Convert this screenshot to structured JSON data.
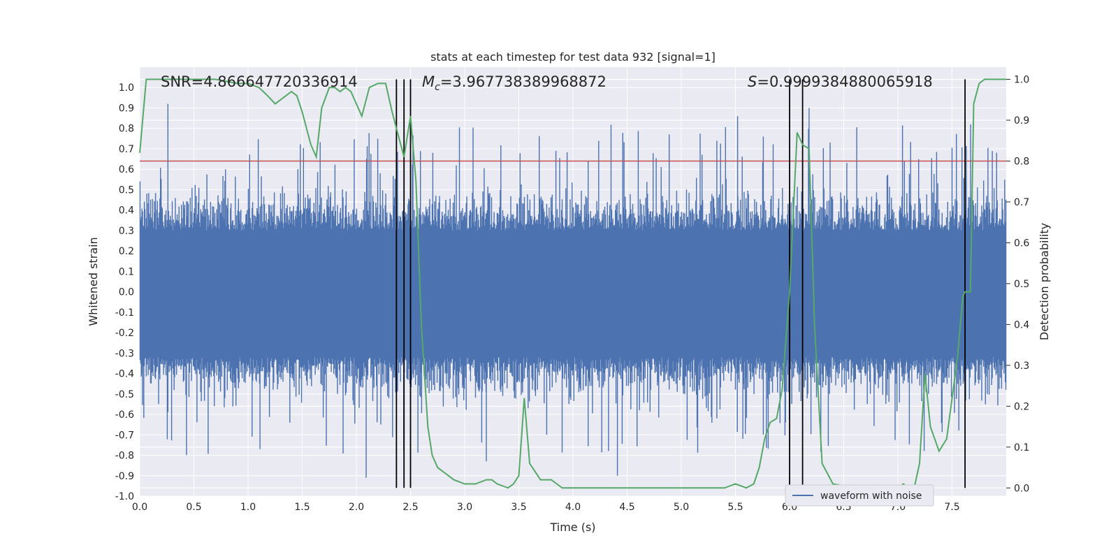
{
  "chart_data": {
    "type": "line",
    "title": "stats at each timestep for test data 932 [signal=1]",
    "xlabel": "Time (s)",
    "ylabel_left": "Whitened strain",
    "ylabel_right": "Detection probability",
    "xlim": [
      0.0,
      8.0
    ],
    "ylim_left": [
      -1.0,
      1.1
    ],
    "ylim_right": [
      -0.02,
      1.03
    ],
    "x_ticks": [
      "0.0",
      "0.5",
      "1.0",
      "1.5",
      "2.0",
      "2.5",
      "3.0",
      "3.5",
      "4.0",
      "4.5",
      "5.0",
      "5.5",
      "6.0",
      "6.5",
      "7.0",
      "7.5"
    ],
    "y_ticks_left": [
      "-1.0",
      "-0.9",
      "-0.8",
      "-0.7",
      "-0.6",
      "-0.5",
      "-0.4",
      "-0.3",
      "-0.2",
      "-0.1",
      "0.0",
      "0.1",
      "0.2",
      "0.3",
      "0.4",
      "0.5",
      "0.6",
      "0.7",
      "0.8",
      "0.9",
      "1.0"
    ],
    "y_ticks_right": [
      "0.0",
      "0.1",
      "0.2",
      "0.3",
      "0.4",
      "0.5",
      "0.6",
      "0.7",
      "0.8",
      "0.9",
      "1.0"
    ],
    "annotations": {
      "snr": "SNR=4.866647720336914",
      "mc_symbol": "M",
      "mc_sub": "c",
      "mc_value": "=3.967738389968872",
      "s_symbol": "S",
      "s_value": "=0.9999384880065918"
    },
    "threshold_probability": 0.8,
    "event_times": [
      2.37,
      2.44,
      2.5,
      6.0,
      6.12,
      7.62
    ],
    "series": [
      {
        "name": "waveform with noise",
        "color": "#4c72b0",
        "description": "Whitened strain noise over 0-8 s, amplitude mostly within +/-0.45 with spikes to about +0.92 / -0.9"
      },
      {
        "name": "detection probability",
        "color": "#55a868",
        "x": [
          0.0,
          0.06,
          0.15,
          0.3,
          0.5,
          0.7,
          0.9,
          1.0,
          1.1,
          1.18,
          1.25,
          1.3,
          1.4,
          1.45,
          1.5,
          1.58,
          1.63,
          1.68,
          1.75,
          1.8,
          1.85,
          1.9,
          1.95,
          2.0,
          2.05,
          2.12,
          2.2,
          2.27,
          2.33,
          2.38,
          2.44,
          2.5,
          2.55,
          2.6,
          2.66,
          2.7,
          2.75,
          2.8,
          2.9,
          3.0,
          3.1,
          3.2,
          3.25,
          3.3,
          3.4,
          3.45,
          3.5,
          3.55,
          3.6,
          3.7,
          3.8,
          3.9,
          4.0,
          4.2,
          4.4,
          4.6,
          4.8,
          5.0,
          5.2,
          5.4,
          5.5,
          5.6,
          5.67,
          5.72,
          5.77,
          5.82,
          5.88,
          5.93,
          6.0,
          6.07,
          6.12,
          6.18,
          6.23,
          6.3,
          6.4,
          6.6,
          6.8,
          7.0,
          7.05,
          7.1,
          7.15,
          7.2,
          7.25,
          7.3,
          7.38,
          7.45,
          7.55,
          7.6,
          7.62,
          7.67,
          7.7,
          7.75,
          7.8,
          7.9,
          8.0
        ],
        "values": [
          0.82,
          1.0,
          1.0,
          1.0,
          1.0,
          1.0,
          0.99,
          0.99,
          0.98,
          0.96,
          0.94,
          0.95,
          0.97,
          0.96,
          0.92,
          0.84,
          0.81,
          0.93,
          0.98,
          0.98,
          0.97,
          0.98,
          0.97,
          0.94,
          0.91,
          0.98,
          0.99,
          0.99,
          0.92,
          0.87,
          0.81,
          0.91,
          0.75,
          0.4,
          0.15,
          0.08,
          0.05,
          0.04,
          0.02,
          0.01,
          0.01,
          0.02,
          0.02,
          0.01,
          0.0,
          0.01,
          0.03,
          0.22,
          0.06,
          0.02,
          0.02,
          0.0,
          0.0,
          0.0,
          0.0,
          0.0,
          0.0,
          0.0,
          0.0,
          0.0,
          0.01,
          0.0,
          0.01,
          0.05,
          0.12,
          0.16,
          0.17,
          0.24,
          0.48,
          0.87,
          0.84,
          0.83,
          0.4,
          0.06,
          0.01,
          0.0,
          0.0,
          0.0,
          0.01,
          0.0,
          0.0,
          0.06,
          0.28,
          0.15,
          0.09,
          0.12,
          0.32,
          0.47,
          0.48,
          0.48,
          0.94,
          0.99,
          1.0,
          1.0,
          1.0
        ]
      }
    ],
    "legend": {
      "label": "waveform with noise",
      "position": "lower-right"
    }
  }
}
